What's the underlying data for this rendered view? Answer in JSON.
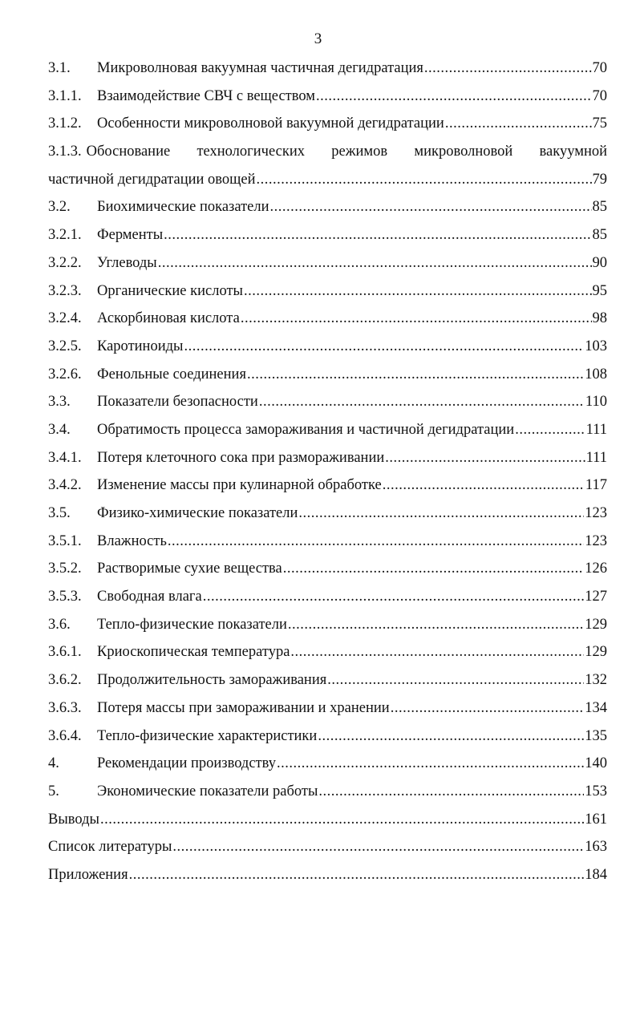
{
  "page_number": "3",
  "entries": [
    {
      "num": "3.1.",
      "title": "Микроволновая вакуумная частичная дегидратация",
      "page": "70"
    },
    {
      "num": "3.1.1.",
      "title": "Взаимодействие СВЧ с веществом",
      "page": "70"
    },
    {
      "num": "3.1.2.",
      "title": "Особенности микроволновой вакуумной дегидратации",
      "page": "75"
    },
    {
      "num": "3.1.3.",
      "title_line1": "Обоснование технологических режимов микроволновой вакуумной",
      "title_line2": "частичной дегидратации овощей",
      "page": "79"
    },
    {
      "num": "3.2.",
      "title": "Биохимические показатели",
      "page": "85"
    },
    {
      "num": "3.2.1.",
      "title": "Ферменты",
      "page": "85"
    },
    {
      "num": "3.2.2.",
      "title": "Углеводы",
      "page": "90"
    },
    {
      "num": "3.2.3.",
      "title": "Органические кислоты",
      "page": "95"
    },
    {
      "num": "3.2.4.",
      "title": "Аскорбиновая кислота",
      "page": "98"
    },
    {
      "num": "3.2.5.",
      "title": "Каротиноиды",
      "page": "103"
    },
    {
      "num": "3.2.6.",
      "title": "Фенольные соединения",
      "page": "108"
    },
    {
      "num": "3.3.",
      "title": "Показатели безопасности",
      "page": "110"
    },
    {
      "num": "3.4.",
      "title": "Обратимость процесса замораживания и частичной дегидратации",
      "page": "111"
    },
    {
      "num": "3.4.1.",
      "title": "Потеря клеточного сока при размораживании",
      "page": "111"
    },
    {
      "num": "3.4.2.",
      "title": "Изменение массы при кулинарной обработке",
      "page": "117"
    },
    {
      "num": "3.5.",
      "title": "Физико-химические показатели",
      "page": "123"
    },
    {
      "num": "3.5.1.",
      "title": "Влажность",
      "page": "123"
    },
    {
      "num": "3.5.2.",
      "title": "Растворимые сухие вещества",
      "page": "126"
    },
    {
      "num": "3.5.3.",
      "title": "Свободная влага",
      "page": "127"
    },
    {
      "num": "3.6.",
      "title": "Тепло-физические показатели",
      "page": "129"
    },
    {
      "num": "3.6.1.",
      "title": "Криоскопическая температура",
      "page": "129"
    },
    {
      "num": "3.6.2.",
      "title": "Продолжительность замораживания",
      "page": "132"
    },
    {
      "num": "3.6.3.",
      "title": "Потеря массы при замораживании и хранении",
      "page": "134"
    },
    {
      "num": "3.6.4.",
      "title": "Тепло-физические характеристики",
      "page": "135"
    },
    {
      "num": "4.",
      "title": "Рекомендации производству",
      "page": "140"
    },
    {
      "num": "5.",
      "title": "Экономические показатели работы",
      "page": "153"
    },
    {
      "num": "",
      "title": "Выводы",
      "page": "161"
    },
    {
      "num": "",
      "title": "Список литературы",
      "page": "163"
    },
    {
      "num": "",
      "title": "Приложения",
      "page": "184"
    }
  ]
}
